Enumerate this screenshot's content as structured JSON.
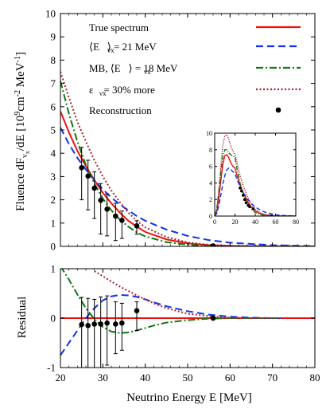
{
  "chart_data": [
    {
      "id": "main",
      "type": "line",
      "xlim": [
        20,
        80
      ],
      "ylim": [
        0,
        10
      ],
      "x_ticks": [
        20,
        30,
        40,
        50,
        60,
        70,
        80
      ],
      "y_ticks": [
        0,
        1,
        2,
        3,
        4,
        5,
        6,
        7,
        8,
        9,
        10
      ],
      "ylabel_parts": {
        "main": "Fluence dF",
        "sub1": "ν",
        "sub2": "x",
        "mid": "/dE [10",
        "sup1": "9",
        "mid2": "cm",
        "sup2": "-2",
        "mid3": " MeV",
        "sup3": "-1",
        "end": "]"
      },
      "legend_placement": "top",
      "series": [
        {
          "name": "True spectrum",
          "color": "#ee1111",
          "style": "solid",
          "x": [
            20,
            22,
            24,
            26,
            28,
            30,
            32,
            34,
            36,
            38,
            40,
            45,
            50,
            55,
            60,
            70,
            80
          ],
          "y": [
            5.8,
            4.9,
            4.1,
            3.45,
            2.85,
            2.3,
            1.85,
            1.45,
            1.1,
            0.85,
            0.62,
            0.3,
            0.13,
            0.05,
            0.02,
            0.003,
            0.0
          ]
        },
        {
          "name": "⟨E   ⟩ = 21 MeV",
          "color": "#1133ee",
          "style": "dashed",
          "x": [
            20,
            22,
            24,
            26,
            28,
            30,
            32,
            34,
            36,
            38,
            40,
            45,
            50,
            55,
            60,
            70,
            80
          ],
          "y": [
            5.1,
            4.4,
            3.8,
            3.3,
            2.85,
            2.45,
            2.1,
            1.8,
            1.55,
            1.3,
            1.1,
            0.72,
            0.45,
            0.27,
            0.16,
            0.05,
            0.015
          ]
        },
        {
          "name": "MB, ⟨E   ⟩ = 18 MeV",
          "color": "#117711",
          "style": "dashdot",
          "x": [
            20,
            22,
            24,
            26,
            28,
            30,
            32,
            34,
            36,
            38,
            40,
            45,
            50,
            55,
            60,
            70,
            80
          ],
          "y": [
            7.1,
            5.7,
            4.5,
            3.5,
            2.7,
            2.05,
            1.55,
            1.15,
            0.85,
            0.6,
            0.43,
            0.18,
            0.07,
            0.025,
            0.008,
            0.001,
            0.0
          ]
        },
        {
          "name": "ε    = 30% more",
          "color": "#aa2233",
          "style": "dotted",
          "x": [
            20,
            22,
            24,
            26,
            28,
            30,
            32,
            34,
            36,
            38,
            40,
            45,
            50,
            55,
            60,
            70,
            80
          ],
          "y": [
            7.5,
            6.4,
            5.35,
            4.5,
            3.7,
            3.0,
            2.4,
            1.9,
            1.45,
            1.1,
            0.82,
            0.4,
            0.17,
            0.07,
            0.025,
            0.004,
            0.0
          ]
        },
        {
          "name": "Reconstruction",
          "color": "#000000",
          "style": "points",
          "x": [
            25,
            26.5,
            28,
            29.5,
            31,
            33,
            34.5,
            38,
            56
          ],
          "y": [
            3.38,
            3.02,
            2.5,
            1.98,
            1.6,
            1.3,
            1.12,
            0.88,
            0.02
          ],
          "err_low": [
            1.38,
            1.45,
            1.3,
            1.45,
            1.15,
            1.05,
            0.78,
            0.36,
            0.02
          ],
          "err_high": [
            0.87,
            0.68,
            0.7,
            0.72,
            0.65,
            0.55,
            0.4,
            0.22,
            0.04
          ]
        }
      ],
      "legend_subscripts": [
        "",
        "νx",
        "νx",
        "νx",
        ""
      ]
    },
    {
      "id": "inset",
      "type": "line",
      "xlim": [
        0,
        80
      ],
      "ylim": [
        0,
        10
      ],
      "x_ticks": [
        0,
        20,
        40,
        60,
        80
      ],
      "y_ticks": [
        0,
        2,
        4,
        6,
        8,
        10
      ],
      "series": [
        {
          "color": "#ee1111",
          "style": "solid",
          "x": [
            0,
            2,
            4,
            6,
            8,
            10,
            12,
            14,
            16,
            18,
            20,
            22,
            25,
            28,
            32,
            36,
            40,
            45,
            50,
            60,
            70,
            80
          ],
          "y": [
            0,
            0.5,
            2.0,
            4.2,
            6.2,
            7.3,
            7.4,
            7.0,
            6.4,
            6.0,
            5.8,
            4.9,
            3.7,
            2.85,
            1.85,
            1.1,
            0.62,
            0.3,
            0.13,
            0.02,
            0.003,
            0
          ]
        },
        {
          "color": "#1133ee",
          "style": "dashed",
          "x": [
            0,
            2,
            4,
            6,
            8,
            10,
            12,
            14,
            16,
            18,
            20,
            22,
            25,
            28,
            32,
            36,
            40,
            45,
            50,
            60,
            70,
            80
          ],
          "y": [
            0,
            0.3,
            1.2,
            2.5,
            3.8,
            4.9,
            5.6,
            5.8,
            5.6,
            5.35,
            5.1,
            4.4,
            3.55,
            2.85,
            2.1,
            1.55,
            1.1,
            0.72,
            0.45,
            0.16,
            0.05,
            0.015
          ]
        },
        {
          "color": "#117711",
          "style": "dashdot",
          "x": [
            0,
            2,
            4,
            6,
            8,
            10,
            12,
            14,
            16,
            18,
            20,
            22,
            25,
            28,
            32,
            36,
            40,
            45,
            50,
            60,
            70,
            80
          ],
          "y": [
            0,
            0.8,
            2.8,
            5.3,
            7.2,
            8.0,
            8.0,
            7.6,
            7.4,
            7.2,
            7.1,
            5.7,
            4.0,
            2.7,
            1.55,
            0.85,
            0.43,
            0.18,
            0.07,
            0.008,
            0.001,
            0
          ]
        },
        {
          "color": "#aa2233",
          "style": "dotted",
          "x": [
            0,
            2,
            4,
            6,
            8,
            10,
            12,
            14,
            16,
            18,
            20,
            22,
            25,
            28,
            32,
            36,
            40,
            45,
            50,
            60,
            70,
            80
          ],
          "y": [
            0,
            0.8,
            3.0,
            6.0,
            8.5,
            9.7,
            9.8,
            9.2,
            8.4,
            7.8,
            7.5,
            6.4,
            4.9,
            3.7,
            2.4,
            1.45,
            0.82,
            0.4,
            0.17,
            0.025,
            0.004,
            0
          ]
        },
        {
          "color": "#000000",
          "style": "points",
          "x": [
            25,
            26.5,
            28,
            29.5,
            31,
            33,
            34.5,
            38,
            56
          ],
          "y": [
            3.38,
            3.02,
            2.5,
            1.98,
            1.6,
            1.3,
            1.12,
            0.88,
            0.02
          ]
        }
      ]
    },
    {
      "id": "residual",
      "type": "line",
      "xlim": [
        20,
        80
      ],
      "ylim": [
        -1,
        1
      ],
      "x_ticks": [
        20,
        30,
        40,
        50,
        60,
        70,
        80
      ],
      "y_ticks": [
        -1,
        0,
        1
      ],
      "xlabel": "Neutrino Energy E [MeV]",
      "ylabel": "Residual",
      "series": [
        {
          "color": "#ee1111",
          "style": "solid",
          "x": [
            20,
            80
          ],
          "y": [
            0,
            0
          ]
        },
        {
          "color": "#1133ee",
          "style": "dashed",
          "x": [
            20,
            22,
            24,
            26,
            28,
            30,
            32,
            34,
            36,
            38,
            40,
            42,
            45,
            50,
            55,
            60,
            65,
            70,
            72
          ],
          "y": [
            -0.75,
            -0.5,
            -0.25,
            0.0,
            0.2,
            0.36,
            0.44,
            0.47,
            0.46,
            0.43,
            0.38,
            0.32,
            0.24,
            0.14,
            0.07,
            0.03,
            0.01,
            0.0,
            0.0
          ]
        },
        {
          "color": "#117711",
          "style": "dashdot",
          "x": [
            20,
            22,
            24,
            26,
            28,
            30,
            32,
            34,
            36,
            38,
            40,
            42,
            45,
            50,
            55,
            60,
            65,
            70,
            72
          ],
          "y": [
            1.05,
            0.78,
            0.48,
            0.2,
            -0.02,
            -0.18,
            -0.27,
            -0.3,
            -0.29,
            -0.25,
            -0.2,
            -0.15,
            -0.09,
            -0.04,
            -0.01,
            0.0,
            0.0,
            0.0,
            0.0
          ]
        },
        {
          "color": "#aa2233",
          "style": "dotted",
          "x": [
            28,
            30,
            32,
            34,
            36,
            38,
            40,
            42,
            45,
            50,
            55,
            60,
            65,
            70,
            72
          ],
          "y": [
            0.95,
            0.85,
            0.74,
            0.64,
            0.55,
            0.46,
            0.38,
            0.3,
            0.2,
            0.09,
            0.04,
            0.01,
            0.0,
            0.0,
            0.0
          ]
        },
        {
          "color": "#000000",
          "style": "points",
          "x": [
            25,
            26.5,
            28,
            29.5,
            31,
            33,
            34.5,
            38,
            56
          ],
          "y": [
            -0.13,
            -0.15,
            -0.12,
            -0.12,
            -0.1,
            -0.12,
            -0.1,
            0.15,
            0.0
          ],
          "err_low": [
            0.9,
            0.9,
            0.9,
            0.9,
            0.85,
            0.6,
            0.55,
            0.4,
            0.02
          ],
          "err_high": [
            0.55,
            0.55,
            0.5,
            0.55,
            0.55,
            0.45,
            0.4,
            0.18,
            0.02
          ]
        }
      ]
    }
  ]
}
